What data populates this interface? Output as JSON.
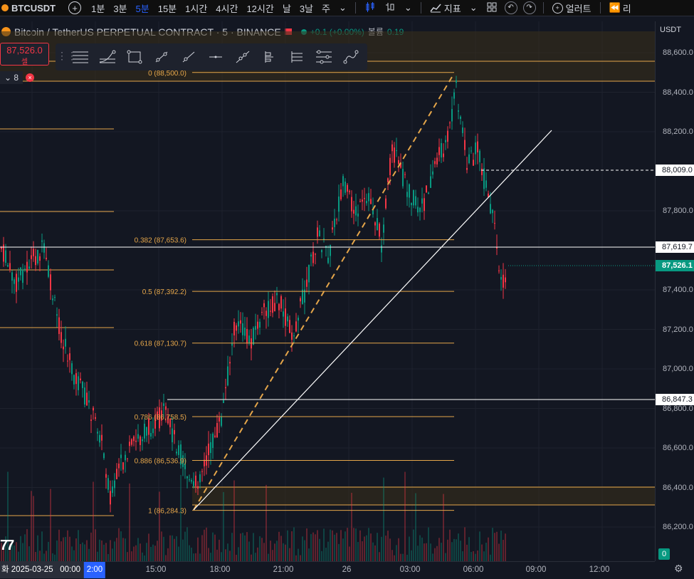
{
  "header": {
    "symbol": "BTCUSDT",
    "intervals": [
      "1분",
      "3분",
      "5분",
      "15분",
      "1시간",
      "4시간",
      "12시간",
      "날",
      "3날",
      "주"
    ],
    "active_interval": "5분",
    "indicator_label": "지표",
    "alert_label": "얼러트",
    "replay_label": "리"
  },
  "legend": {
    "title": "Bitcoin / TetherUS PERPETUAL CONTRACT · 5 · BINANCE",
    "change": "+0.1 (+0.00%)",
    "volume_label": "볼륨",
    "volume_value": "0.19"
  },
  "sell_box": {
    "price": "87,526.0",
    "label": "셀"
  },
  "indicator_toggle": {
    "count": "8"
  },
  "price_axis": {
    "currency": "USDT",
    "ticks": [
      "88,600.0",
      "88,400.0",
      "88,200.0",
      "87,800.0",
      "87,400.0",
      "87,200.0",
      "87,000.0",
      "86,800.0",
      "86,600.0",
      "86,400.0",
      "86,200.0"
    ],
    "tags": [
      {
        "text": "88,009.0",
        "style": "white"
      },
      {
        "text": "87,619.7",
        "style": "white"
      },
      {
        "text": "87,526.1",
        "style": "green"
      },
      {
        "text": "86,847.3",
        "style": "white"
      }
    ],
    "volume_tag": "0"
  },
  "fib_levels": [
    {
      "label": "0 (88,500.0)",
      "price": 88500.0
    },
    {
      "label": "0.382 (87,653.6)",
      "price": 87653.6
    },
    {
      "label": "0.5 (87,392.2)",
      "price": 87392.2
    },
    {
      "label": "0.618 (87,130.7)",
      "price": 87130.7
    },
    {
      "label": "0.786 (86,758.5)",
      "price": 86758.5
    },
    {
      "label": "0.886 (86,536.9)",
      "price": 86536.9
    },
    {
      "label": "1 (86,284.3)",
      "price": 86284.3
    }
  ],
  "time_axis": {
    "date_label": "화 2025-03-25",
    "first_time": "00:00",
    "ticks": [
      "2:00",
      "15:00",
      "18:00",
      "21:00",
      "26",
      "03:00",
      "06:00",
      "09:00",
      "12:00"
    ]
  },
  "colors": {
    "background": "#131722",
    "up": "#089981",
    "down": "#f23645",
    "fib": "#e5a64a",
    "zone": "#3a2f1a",
    "active": "#2962ff"
  },
  "icons": [
    "crosshair-icon",
    "fib-tool-icon",
    "rectangle-tool-icon",
    "trendline-icon",
    "ray-icon",
    "horizontal-line-icon",
    "parallel-channel-icon",
    "pitchfork-icon",
    "fib-extension-icon",
    "fib-channel-icon",
    "path-tool-icon",
    "settings-icon"
  ]
}
